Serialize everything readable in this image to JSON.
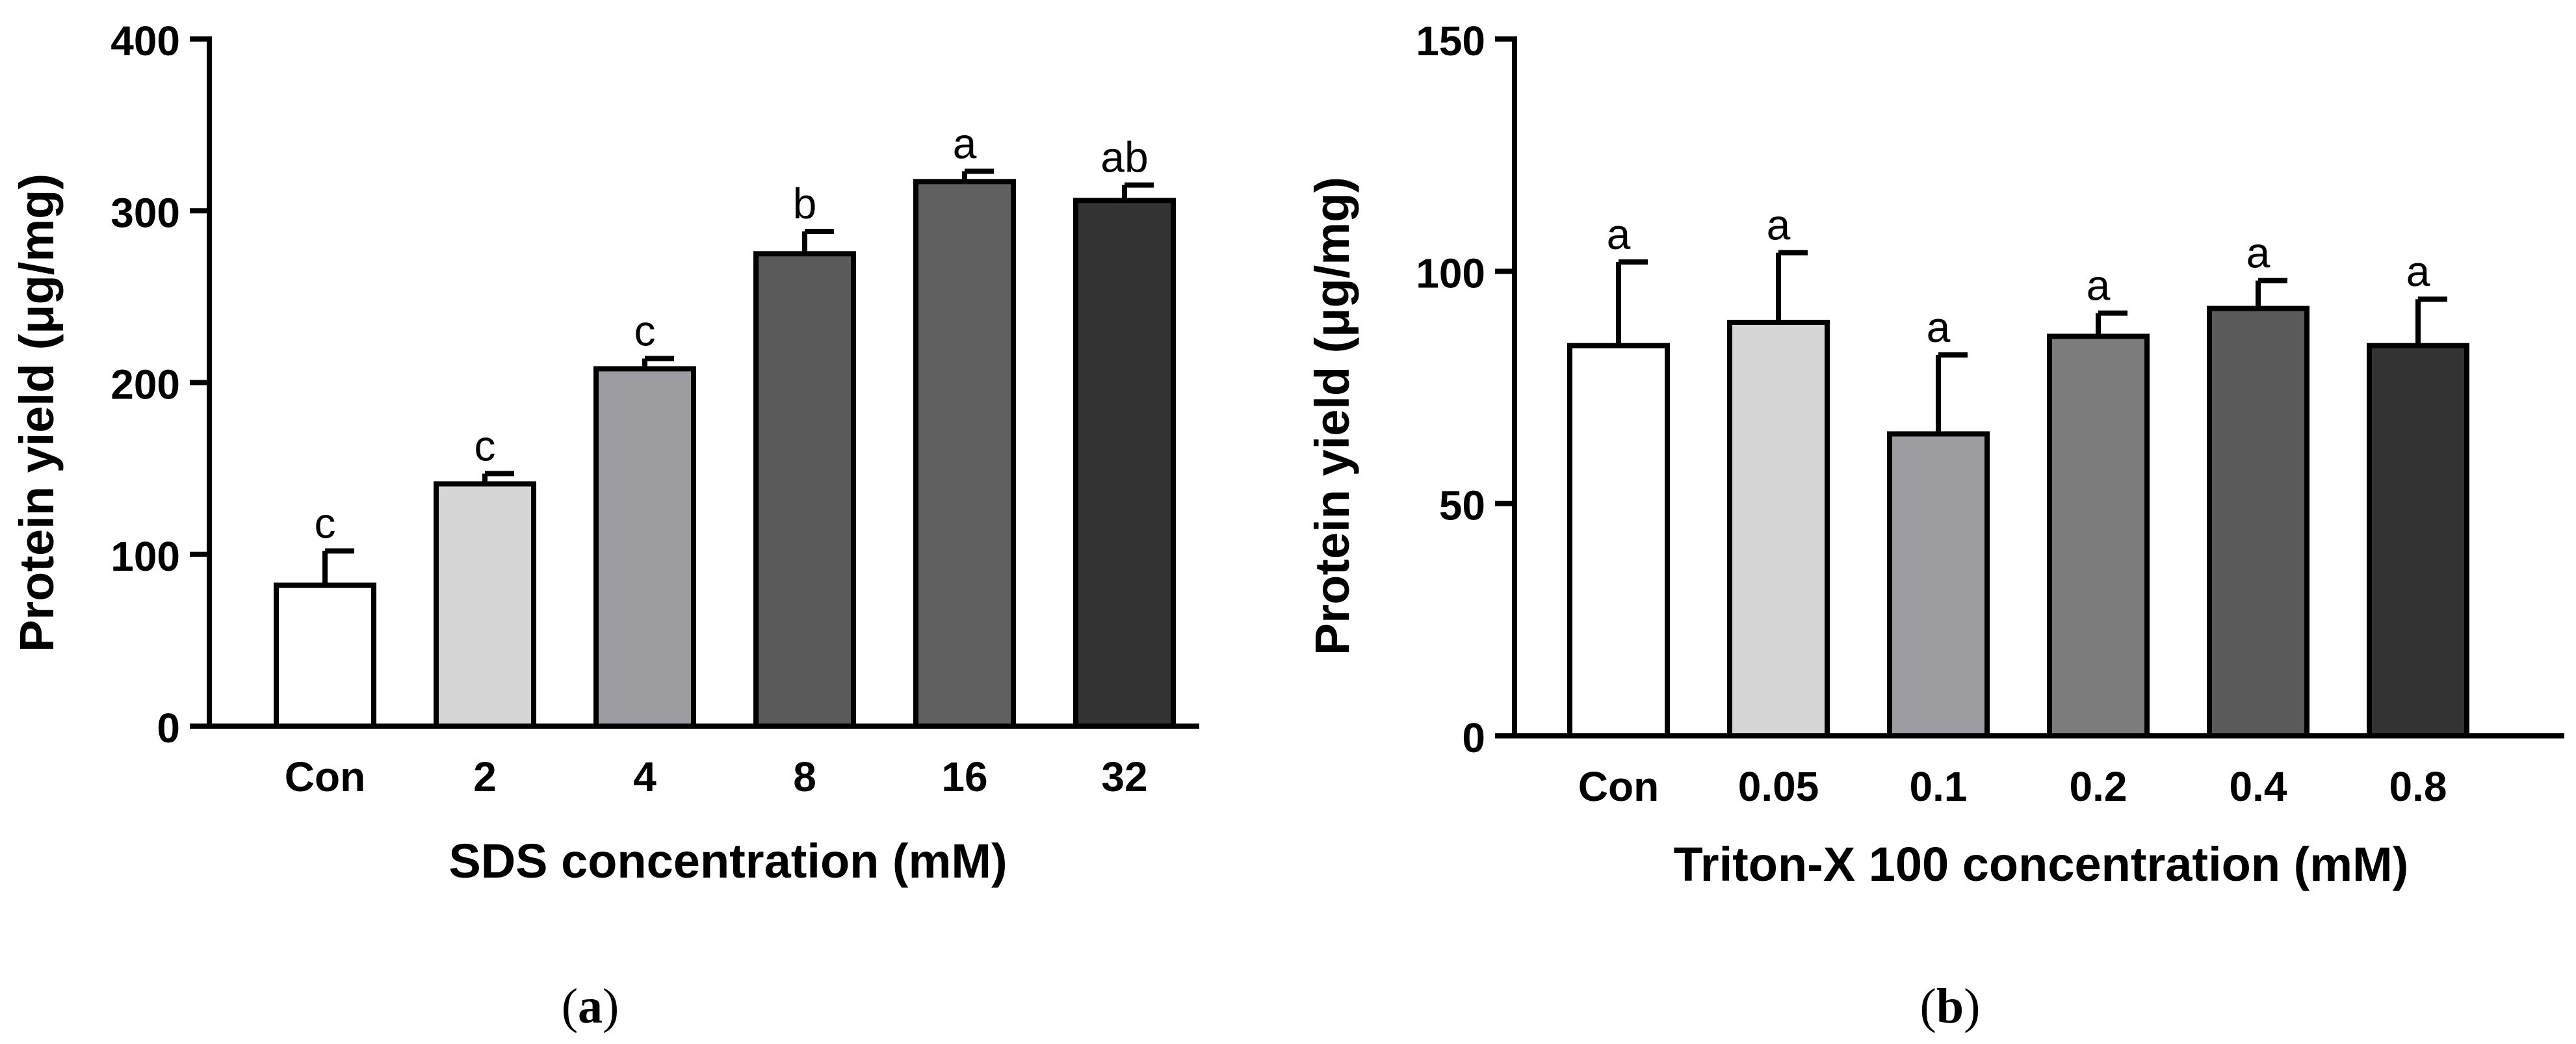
{
  "chart_data": [
    {
      "type": "bar",
      "panel": "a",
      "caption_open": "(",
      "caption_letter": "a",
      "caption_close": ")",
      "ylabel": "Protein yield (μg/mg)",
      "xlabel": "SDS concentration (mM)",
      "ylim": [
        0,
        400
      ],
      "yticks": [
        0,
        100,
        200,
        300,
        400
      ],
      "categories": [
        "Con",
        "2",
        "4",
        "8",
        "16",
        "32"
      ],
      "values": [
        82,
        141,
        208,
        275,
        317,
        306
      ],
      "errors": [
        20,
        6,
        6,
        13,
        6,
        9
      ],
      "significance": [
        "c",
        "c",
        "c",
        "b",
        "a",
        "ab"
      ],
      "colors": [
        "#ffffff",
        "#d6d6d6",
        "#9d9da1",
        "#5a5a5a",
        "#606060",
        "#333333"
      ]
    },
    {
      "type": "bar",
      "panel": "b",
      "caption_open": "(",
      "caption_letter": "b",
      "caption_close": ")",
      "ylabel": "Protein yield (μg/mg)",
      "xlabel": "Triton-X 100 concentration (mM)",
      "ylim": [
        0,
        150
      ],
      "yticks": [
        0,
        50,
        100,
        150
      ],
      "categories": [
        "Con",
        "0.05",
        "0.1",
        "0.2",
        "0.4",
        "0.8"
      ],
      "values": [
        84,
        89,
        65,
        86,
        92,
        84
      ],
      "errors": [
        18,
        15,
        17,
        5,
        6,
        10
      ],
      "significance": [
        "a",
        "a",
        "a",
        "a",
        "a",
        "a"
      ],
      "colors": [
        "#ffffff",
        "#d6d6d6",
        "#9d9da1",
        "#7c7c7c",
        "#5a5a5a",
        "#333333"
      ]
    }
  ]
}
